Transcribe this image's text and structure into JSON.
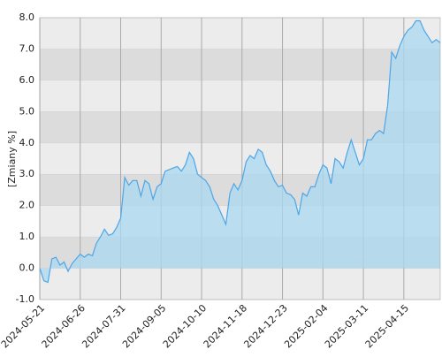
{
  "chart_data": {
    "type": "area",
    "y_label": "[Zmiany %]",
    "categories": [
      "2024-05-21",
      null,
      null,
      null,
      null,
      null,
      null,
      null,
      null,
      null,
      "2024-06-26",
      null,
      null,
      null,
      null,
      null,
      null,
      null,
      null,
      null,
      "2024-07-31",
      null,
      null,
      null,
      null,
      null,
      null,
      null,
      null,
      null,
      "2024-09-05",
      null,
      null,
      null,
      null,
      null,
      null,
      null,
      null,
      null,
      "2024-10-10",
      null,
      null,
      null,
      null,
      null,
      null,
      null,
      null,
      null,
      "2024-11-18",
      null,
      null,
      null,
      null,
      null,
      null,
      null,
      null,
      null,
      "2024-12-23",
      null,
      null,
      null,
      null,
      null,
      null,
      null,
      null,
      null,
      "2025-02-04",
      null,
      null,
      null,
      null,
      null,
      null,
      null,
      null,
      null,
      "2025-03-11",
      null,
      null,
      null,
      null,
      null,
      null,
      null,
      null,
      null,
      "2025-04-15",
      null,
      null,
      null,
      null,
      null,
      null,
      null,
      null,
      null
    ],
    "values": [
      0.0,
      -0.4,
      -0.45,
      0.3,
      0.35,
      0.1,
      0.2,
      -0.1,
      0.15,
      0.3,
      0.45,
      0.35,
      0.45,
      0.4,
      0.8,
      1.0,
      1.25,
      1.05,
      1.1,
      1.3,
      1.6,
      2.9,
      2.65,
      2.8,
      2.8,
      2.3,
      2.8,
      2.7,
      2.2,
      2.6,
      2.7,
      3.1,
      3.15,
      3.2,
      3.25,
      3.1,
      3.3,
      3.7,
      3.5,
      3.0,
      2.9,
      2.8,
      2.6,
      2.2,
      2.0,
      1.7,
      1.4,
      2.4,
      2.7,
      2.5,
      2.8,
      3.4,
      3.6,
      3.5,
      3.8,
      3.7,
      3.3,
      3.1,
      2.8,
      2.6,
      2.65,
      2.4,
      2.35,
      2.2,
      1.7,
      2.4,
      2.3,
      2.6,
      2.6,
      3.0,
      3.3,
      3.2,
      2.7,
      3.5,
      3.4,
      3.2,
      3.7,
      4.1,
      3.7,
      3.3,
      3.5,
      4.1,
      4.1,
      4.3,
      4.4,
      4.3,
      5.2,
      6.9,
      6.7,
      7.1,
      7.4,
      7.6,
      7.7,
      7.9,
      7.9,
      7.6,
      7.4,
      7.2,
      7.3,
      7.2
    ],
    "color": "#4da6e8",
    "fill_color": "#a9d8f0",
    "ylim": [
      -1,
      8
    ],
    "yticks": [
      {
        "value": -1,
        "label": "-1.0"
      },
      {
        "value": 0,
        "label": "0.0"
      },
      {
        "value": 1,
        "label": "1.0"
      },
      {
        "value": 2,
        "label": "2.0"
      },
      {
        "value": 3,
        "label": "3.0"
      },
      {
        "value": 4,
        "label": "4.0"
      },
      {
        "value": 5,
        "label": "5.0"
      },
      {
        "value": 6,
        "label": "6.0"
      },
      {
        "value": 7,
        "label": "7.0"
      },
      {
        "value": 8,
        "label": "8.0"
      }
    ],
    "grid": true
  }
}
